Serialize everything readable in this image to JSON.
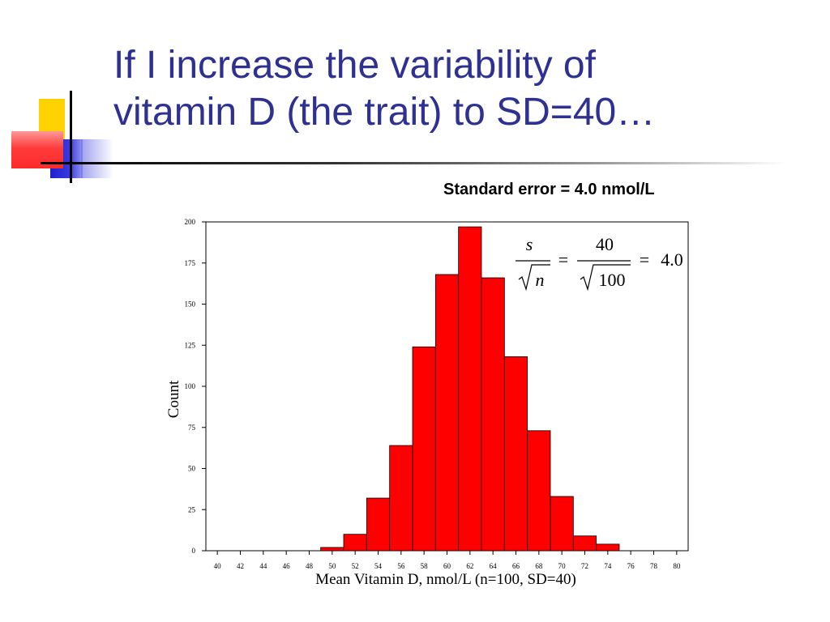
{
  "slide": {
    "title_lines": [
      "If I increase the variability of",
      "vitamin D (the trait) to SD=40…"
    ],
    "se_note": "Standard error = 4.0 nmol/L",
    "accent_colors": {
      "title": "#2e3192",
      "yellow": "#ffd200",
      "red": "#ff3333",
      "blue": "#2a2ad6"
    }
  },
  "equation": {
    "s": "s",
    "n": "n",
    "eq1": "=",
    "num": "40",
    "den": "100",
    "eq2": "=",
    "result": "4.0"
  },
  "chart_data": {
    "type": "bar",
    "title": "",
    "xlabel": "Mean Vitamin D, nmol/L (n=100, SD=40)",
    "ylabel": "Count",
    "ylim": [
      0,
      200
    ],
    "xlim": [
      39,
      81
    ],
    "yticks": [
      0,
      25,
      50,
      75,
      100,
      125,
      150,
      175,
      200
    ],
    "xticks": [
      40,
      42,
      44,
      46,
      48,
      50,
      52,
      54,
      56,
      58,
      60,
      62,
      64,
      66,
      68,
      70,
      72,
      74,
      76,
      78,
      80
    ],
    "bin_width": 2,
    "bins": [
      {
        "start": 49,
        "end": 51,
        "count": 2
      },
      {
        "start": 51,
        "end": 53,
        "count": 10
      },
      {
        "start": 53,
        "end": 55,
        "count": 32
      },
      {
        "start": 55,
        "end": 57,
        "count": 64
      },
      {
        "start": 57,
        "end": 59,
        "count": 124
      },
      {
        "start": 59,
        "end": 61,
        "count": 168
      },
      {
        "start": 61,
        "end": 63,
        "count": 197
      },
      {
        "start": 63,
        "end": 65,
        "count": 166
      },
      {
        "start": 65,
        "end": 67,
        "count": 118
      },
      {
        "start": 67,
        "end": 69,
        "count": 73
      },
      {
        "start": 69,
        "end": 71,
        "count": 33
      },
      {
        "start": 71,
        "end": 73,
        "count": 9
      },
      {
        "start": 73,
        "end": 75,
        "count": 4
      }
    ],
    "bar_color": "#ff0000",
    "grid": false
  }
}
